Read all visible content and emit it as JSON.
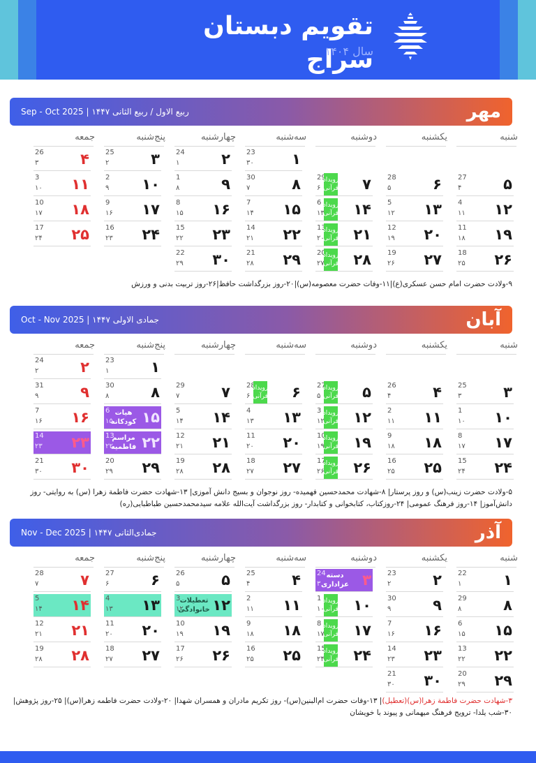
{
  "header": {
    "title": "تقویم دبستان سراج",
    "subtitle": "سال ۱۴۰۴"
  },
  "weekdays": [
    "شنبه",
    "یکشنبه",
    "دوشنبه",
    "سه‌شنبه",
    "چهارشنبه",
    "پنج‌شنبه",
    "جمعه"
  ],
  "quran_label": "رویداد قرآنی",
  "months": [
    {
      "name": "مهر",
      "range": "Sep - Oct 2025 | ربیع الاول / ربیع الثانی ۱۴۴۷",
      "cells": [
        {
          "row": 0,
          "col": 3,
          "day": "۱",
          "g": "23",
          "h": "۳۰"
        },
        {
          "row": 0,
          "col": 4,
          "day": "۲",
          "g": "24",
          "h": "۱"
        },
        {
          "row": 0,
          "col": 5,
          "day": "۳",
          "g": "25",
          "h": "۲"
        },
        {
          "row": 0,
          "col": 6,
          "day": "۴",
          "g": "26",
          "h": "۳",
          "holiday": true
        },
        {
          "row": 1,
          "col": 0,
          "day": "۵",
          "g": "27",
          "h": "۴"
        },
        {
          "row": 1,
          "col": 1,
          "day": "۶",
          "g": "28",
          "h": "۵"
        },
        {
          "row": 1,
          "col": 2,
          "day": "۷",
          "g": "29",
          "h": "۶",
          "quran": true
        },
        {
          "row": 1,
          "col": 3,
          "day": "۸",
          "g": "30",
          "h": "۷"
        },
        {
          "row": 1,
          "col": 4,
          "day": "۹",
          "g": "1",
          "h": "۸"
        },
        {
          "row": 1,
          "col": 5,
          "day": "۱۰",
          "g": "2",
          "h": "۹"
        },
        {
          "row": 1,
          "col": 6,
          "day": "۱۱",
          "g": "3",
          "h": "۱۰",
          "holiday": true
        },
        {
          "row": 2,
          "col": 0,
          "day": "۱۲",
          "g": "4",
          "h": "۱۱"
        },
        {
          "row": 2,
          "col": 1,
          "day": "۱۳",
          "g": "5",
          "h": "۱۲"
        },
        {
          "row": 2,
          "col": 2,
          "day": "۱۴",
          "g": "6",
          "h": "۱۳",
          "quran": true
        },
        {
          "row": 2,
          "col": 3,
          "day": "۱۵",
          "g": "7",
          "h": "۱۴"
        },
        {
          "row": 2,
          "col": 4,
          "day": "۱۶",
          "g": "8",
          "h": "۱۵"
        },
        {
          "row": 2,
          "col": 5,
          "day": "۱۷",
          "g": "9",
          "h": "۱۶"
        },
        {
          "row": 2,
          "col": 6,
          "day": "۱۸",
          "g": "10",
          "h": "۱۷",
          "holiday": true
        },
        {
          "row": 3,
          "col": 0,
          "day": "۱۹",
          "g": "11",
          "h": "۱۸"
        },
        {
          "row": 3,
          "col": 1,
          "day": "۲۰",
          "g": "12",
          "h": "۱۹"
        },
        {
          "row": 3,
          "col": 2,
          "day": "۲۱",
          "g": "13",
          "h": "۲۰",
          "quran": true
        },
        {
          "row": 3,
          "col": 3,
          "day": "۲۲",
          "g": "14",
          "h": "۲۱"
        },
        {
          "row": 3,
          "col": 4,
          "day": "۲۳",
          "g": "15",
          "h": "۲۲"
        },
        {
          "row": 3,
          "col": 5,
          "day": "۲۴",
          "g": "16",
          "h": "۲۳"
        },
        {
          "row": 3,
          "col": 6,
          "day": "۲۵",
          "g": "17",
          "h": "۲۴",
          "holiday": true
        },
        {
          "row": 4,
          "col": 0,
          "day": "۲۶",
          "g": "18",
          "h": "۲۵"
        },
        {
          "row": 4,
          "col": 1,
          "day": "۲۷",
          "g": "19",
          "h": "۲۶"
        },
        {
          "row": 4,
          "col": 2,
          "day": "۲۸",
          "g": "20",
          "h": "۲۷",
          "quran": true
        },
        {
          "row": 4,
          "col": 3,
          "day": "۲۹",
          "g": "21",
          "h": "۲۸"
        },
        {
          "row": 4,
          "col": 4,
          "day": "۳۰",
          "g": "22",
          "h": "۲۹"
        }
      ],
      "notes": "۹-ولادت حضرت امام حسن عسکری(ع)|۱۱-وفات حضرت معصومه(س)|۲۰-روز بزرگداشت حافظ|۲۶-روز تربیت بدنی و ورزش"
    },
    {
      "name": "آبان",
      "range": "Oct - Nov 2025 | جمادی الاولی ۱۴۴۷",
      "cells": [
        {
          "row": 0,
          "col": 5,
          "day": "۱",
          "g": "23",
          "h": "۱"
        },
        {
          "row": 0,
          "col": 6,
          "day": "۲",
          "g": "24",
          "h": "۲",
          "holiday": true
        },
        {
          "row": 1,
          "col": 0,
          "day": "۳",
          "g": "25",
          "h": "۳"
        },
        {
          "row": 1,
          "col": 1,
          "day": "۴",
          "g": "26",
          "h": "۴"
        },
        {
          "row": 1,
          "col": 2,
          "day": "۵",
          "g": "27",
          "h": "۵",
          "quran": true
        },
        {
          "row": 1,
          "col": 3,
          "day": "۶",
          "g": "28",
          "h": "۶",
          "quran": true
        },
        {
          "row": 1,
          "col": 4,
          "day": "۷",
          "g": "29",
          "h": "۷"
        },
        {
          "row": 1,
          "col": 5,
          "day": "۸",
          "g": "30",
          "h": "۸"
        },
        {
          "row": 1,
          "col": 6,
          "day": "۹",
          "g": "31",
          "h": "۹",
          "holiday": true
        },
        {
          "row": 2,
          "col": 0,
          "day": "۱۰",
          "g": "1",
          "h": "۱۰"
        },
        {
          "row": 2,
          "col": 1,
          "day": "۱۱",
          "g": "2",
          "h": "۱۱"
        },
        {
          "row": 2,
          "col": 2,
          "day": "۱۲",
          "g": "3",
          "h": "۱۲",
          "quran": true
        },
        {
          "row": 2,
          "col": 3,
          "day": "۱۳",
          "g": "4",
          "h": "۱۳"
        },
        {
          "row": 2,
          "col": 4,
          "day": "۱۴",
          "g": "5",
          "h": "۱۴"
        },
        {
          "row": 2,
          "col": 5,
          "day": "۱۵",
          "g": "6",
          "h": "۱۵",
          "style": "purple",
          "event": "هیات کودکانه"
        },
        {
          "row": 2,
          "col": 6,
          "day": "۱۶",
          "g": "7",
          "h": "۱۶",
          "holiday": true
        },
        {
          "row": 3,
          "col": 0,
          "day": "۱۷",
          "g": "8",
          "h": "۱۷"
        },
        {
          "row": 3,
          "col": 1,
          "day": "۱۸",
          "g": "9",
          "h": "۱۸"
        },
        {
          "row": 3,
          "col": 2,
          "day": "۱۹",
          "g": "10",
          "h": "۱۹",
          "quran": true
        },
        {
          "row": 3,
          "col": 3,
          "day": "۲۰",
          "g": "11",
          "h": "۲۰"
        },
        {
          "row": 3,
          "col": 4,
          "day": "۲۱",
          "g": "12",
          "h": "۲۱"
        },
        {
          "row": 3,
          "col": 5,
          "day": "۲۲",
          "g": "13",
          "h": "۲۲",
          "style": "purple",
          "event": "مراسم فاطمیه"
        },
        {
          "row": 3,
          "col": 6,
          "day": "۲۳",
          "g": "14",
          "h": "۲۳",
          "holiday": true,
          "style": "purple"
        },
        {
          "row": 4,
          "col": 0,
          "day": "۲۴",
          "g": "15",
          "h": "۲۴"
        },
        {
          "row": 4,
          "col": 1,
          "day": "۲۵",
          "g": "16",
          "h": "۲۵"
        },
        {
          "row": 4,
          "col": 2,
          "day": "۲۶",
          "g": "17",
          "h": "۲۶",
          "quran": true
        },
        {
          "row": 4,
          "col": 3,
          "day": "۲۷",
          "g": "18",
          "h": "۲۷"
        },
        {
          "row": 4,
          "col": 4,
          "day": "۲۸",
          "g": "19",
          "h": "۲۸"
        },
        {
          "row": 4,
          "col": 5,
          "day": "۲۹",
          "g": "20",
          "h": "۲۹"
        },
        {
          "row": 4,
          "col": 6,
          "day": "۳۰",
          "g": "21",
          "h": "۳۰",
          "holiday": true
        }
      ],
      "notes": "۵-ولادت حضرت زینب(س) و روز پرستار| ۸-شهادت محمدحسین فهمیده- روز نوجوان و بسیج دانش آموزی| ۱۳-شهادت حضرت فاطمة زهرا (س) به روایتی- روز دانش‌آموز| ۱۴-روز فرهنگ عمومی| ۲۴-روزکتاب، کتابخوانی و کتابدار- روز بزرگداشت آیت‌الله علامه سیدمحمدحسین طباطبایی(ره)"
    },
    {
      "name": "آذر",
      "range": "Nov - Dec 2025 | جمادی‌الثانی ۱۴۴۷",
      "cells": [
        {
          "row": 0,
          "col": 0,
          "day": "۱",
          "g": "22",
          "h": "۱"
        },
        {
          "row": 0,
          "col": 1,
          "day": "۲",
          "g": "23",
          "h": "۲"
        },
        {
          "row": 0,
          "col": 2,
          "day": "۳",
          "g": "24",
          "h": "۳",
          "holiday": true,
          "style": "purple",
          "event": "دسته عزاداری"
        },
        {
          "row": 0,
          "col": 3,
          "day": "۴",
          "g": "25",
          "h": "۴"
        },
        {
          "row": 0,
          "col": 4,
          "day": "۵",
          "g": "26",
          "h": "۵"
        },
        {
          "row": 0,
          "col": 5,
          "day": "۶",
          "g": "27",
          "h": "۶"
        },
        {
          "row": 0,
          "col": 6,
          "day": "۷",
          "g": "28",
          "h": "۷",
          "holiday": true
        },
        {
          "row": 1,
          "col": 0,
          "day": "۸",
          "g": "29",
          "h": "۸"
        },
        {
          "row": 1,
          "col": 1,
          "day": "۹",
          "g": "30",
          "h": "۹"
        },
        {
          "row": 1,
          "col": 2,
          "day": "۱۰",
          "g": "1",
          "h": "۱۰",
          "quran": true
        },
        {
          "row": 1,
          "col": 3,
          "day": "۱۱",
          "g": "2",
          "h": "۱۱"
        },
        {
          "row": 1,
          "col": 4,
          "day": "۱۲",
          "g": "3",
          "h": "۱۲",
          "style": "teal",
          "event": "تعطیلات خانوادگی"
        },
        {
          "row": 1,
          "col": 5,
          "day": "۱۳",
          "g": "4",
          "h": "۱۳",
          "style": "teal"
        },
        {
          "row": 1,
          "col": 6,
          "day": "۱۴",
          "g": "5",
          "h": "۱۴",
          "holiday": true,
          "style": "teal"
        },
        {
          "row": 2,
          "col": 0,
          "day": "۱۵",
          "g": "6",
          "h": "۱۵"
        },
        {
          "row": 2,
          "col": 1,
          "day": "۱۶",
          "g": "7",
          "h": "۱۶"
        },
        {
          "row": 2,
          "col": 2,
          "day": "۱۷",
          "g": "8",
          "h": "۱۷",
          "quran": true
        },
        {
          "row": 2,
          "col": 3,
          "day": "۱۸",
          "g": "9",
          "h": "۱۸"
        },
        {
          "row": 2,
          "col": 4,
          "day": "۱۹",
          "g": "10",
          "h": "۱۹"
        },
        {
          "row": 2,
          "col": 5,
          "day": "۲۰",
          "g": "11",
          "h": "۲۰"
        },
        {
          "row": 2,
          "col": 6,
          "day": "۲۱",
          "g": "12",
          "h": "۲۱",
          "holiday": true
        },
        {
          "row": 3,
          "col": 0,
          "day": "۲۲",
          "g": "13",
          "h": "۲۲"
        },
        {
          "row": 3,
          "col": 1,
          "day": "۲۳",
          "g": "14",
          "h": "۲۳"
        },
        {
          "row": 3,
          "col": 2,
          "day": "۲۴",
          "g": "15",
          "h": "۲۴",
          "quran": true
        },
        {
          "row": 3,
          "col": 3,
          "day": "۲۵",
          "g": "16",
          "h": "۲۵"
        },
        {
          "row": 3,
          "col": 4,
          "day": "۲۶",
          "g": "17",
          "h": "۲۶"
        },
        {
          "row": 3,
          "col": 5,
          "day": "۲۷",
          "g": "18",
          "h": "۲۷"
        },
        {
          "row": 3,
          "col": 6,
          "day": "۲۸",
          "g": "19",
          "h": "۲۸",
          "holiday": true
        },
        {
          "row": 4,
          "col": 0,
          "day": "۲۹",
          "g": "20",
          "h": "۲۹"
        },
        {
          "row": 4,
          "col": 1,
          "day": "۳۰",
          "g": "21",
          "h": "۳۰"
        }
      ],
      "notes_red": "۳-شهادت حضرت فاطمة زهرا(س)(تعطیل)",
      "notes": "| ۱۳-وفات حضرت ام‌البنین(س)- روز تکریم مادران و همسران شهدا| ۲۰-ولادت حضرت فاطمه زهرا(س)| ۲۵-روز پژوهش| ۳۰-شب یلدا- ترویج فرهنگ میهمانی و پیوند با خویشان"
    }
  ],
  "colors": {
    "header_blue": "#2f5cf0",
    "holiday_red": "#e03030",
    "quran_green": "#4cd94c",
    "event_purple": "#9b59e6",
    "event_teal": "#6be8c3"
  }
}
